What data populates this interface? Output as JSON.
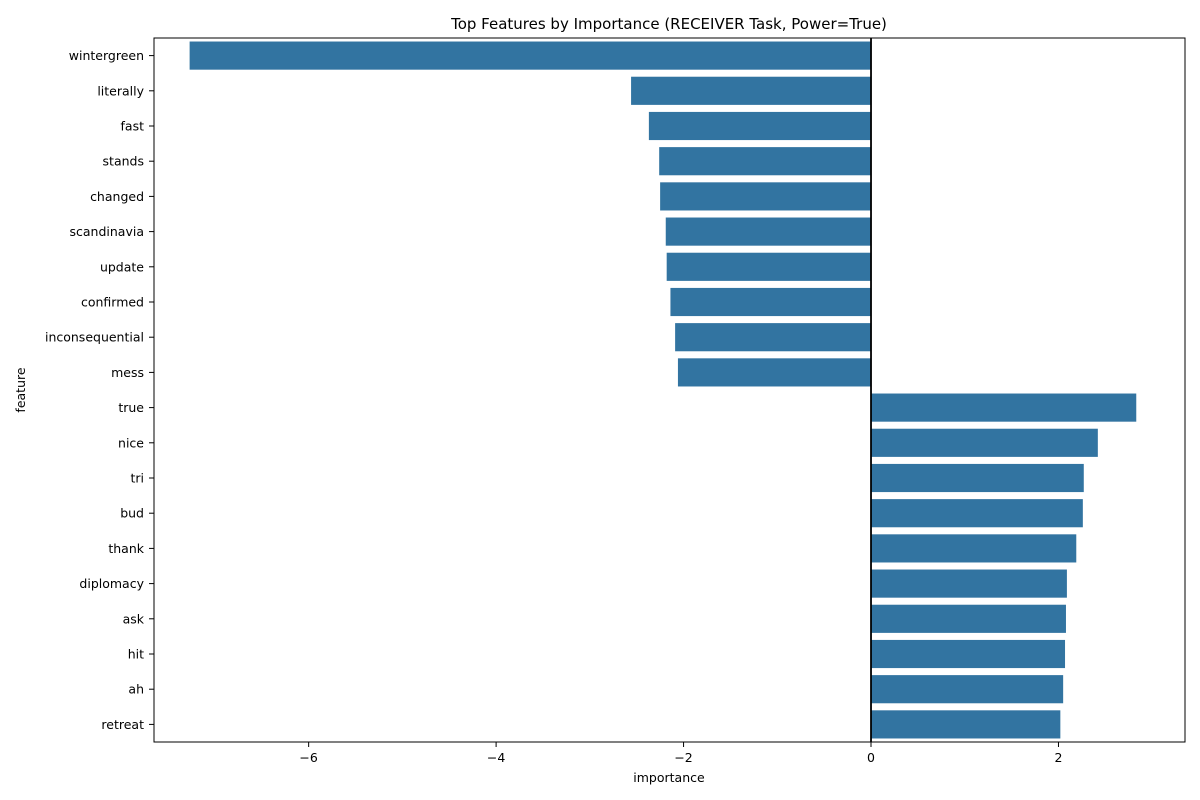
{
  "chart_data": {
    "type": "bar",
    "orientation": "horizontal",
    "title": "Top Features by Importance (RECEIVER Task, Power=True)",
    "xlabel": "importance",
    "ylabel": "feature",
    "xlim": [
      -7.65,
      3.35
    ],
    "xticks": [
      -6,
      -4,
      -2,
      0,
      2
    ],
    "xtick_labels": [
      "−6",
      "−4",
      "−2",
      "0",
      "2"
    ],
    "grid": false,
    "bar_color": "#3274a1",
    "zero_line_color": "#000000",
    "categories": [
      "wintergreen",
      "literally",
      "fast",
      "stands",
      "changed",
      "scandinavia",
      "update",
      "confirmed",
      "inconsequential",
      "mess",
      "true",
      "nice",
      "tri",
      "bud",
      "thank",
      "diplomacy",
      "ask",
      "hit",
      "ah",
      "retreat"
    ],
    "values": [
      -7.27,
      -2.56,
      -2.37,
      -2.26,
      -2.25,
      -2.19,
      -2.18,
      -2.14,
      -2.09,
      -2.06,
      2.83,
      2.42,
      2.27,
      2.26,
      2.19,
      2.09,
      2.08,
      2.07,
      2.05,
      2.02
    ]
  }
}
